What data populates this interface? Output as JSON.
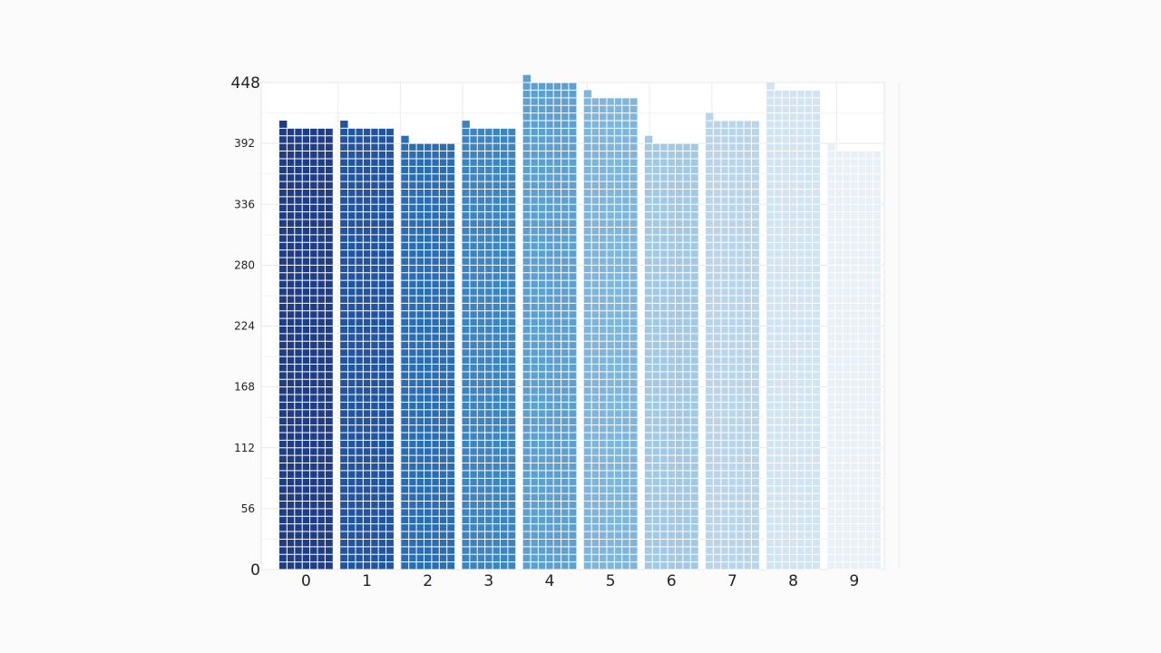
{
  "chart_data": {
    "type": "bar",
    "style": "waffle-column",
    "categories": [
      "0",
      "1",
      "2",
      "3",
      "4",
      "5",
      "6",
      "7",
      "8",
      "9"
    ],
    "values": [
      407,
      407,
      393,
      407,
      449,
      435,
      393,
      414,
      442,
      386
    ],
    "ylim": [
      0,
      448
    ],
    "y_ticks": [
      "0",
      "56",
      "112",
      "168",
      "224",
      "280",
      "336",
      "392",
      "448"
    ],
    "grid": true,
    "colors": [
      "#1f3d85",
      "#23559f",
      "#2a6db3",
      "#3d85c1",
      "#5da0cf",
      "#7fb5da",
      "#a3c8e3",
      "#bad5ea",
      "#d2e3f1",
      "#e8f0f8"
    ]
  }
}
